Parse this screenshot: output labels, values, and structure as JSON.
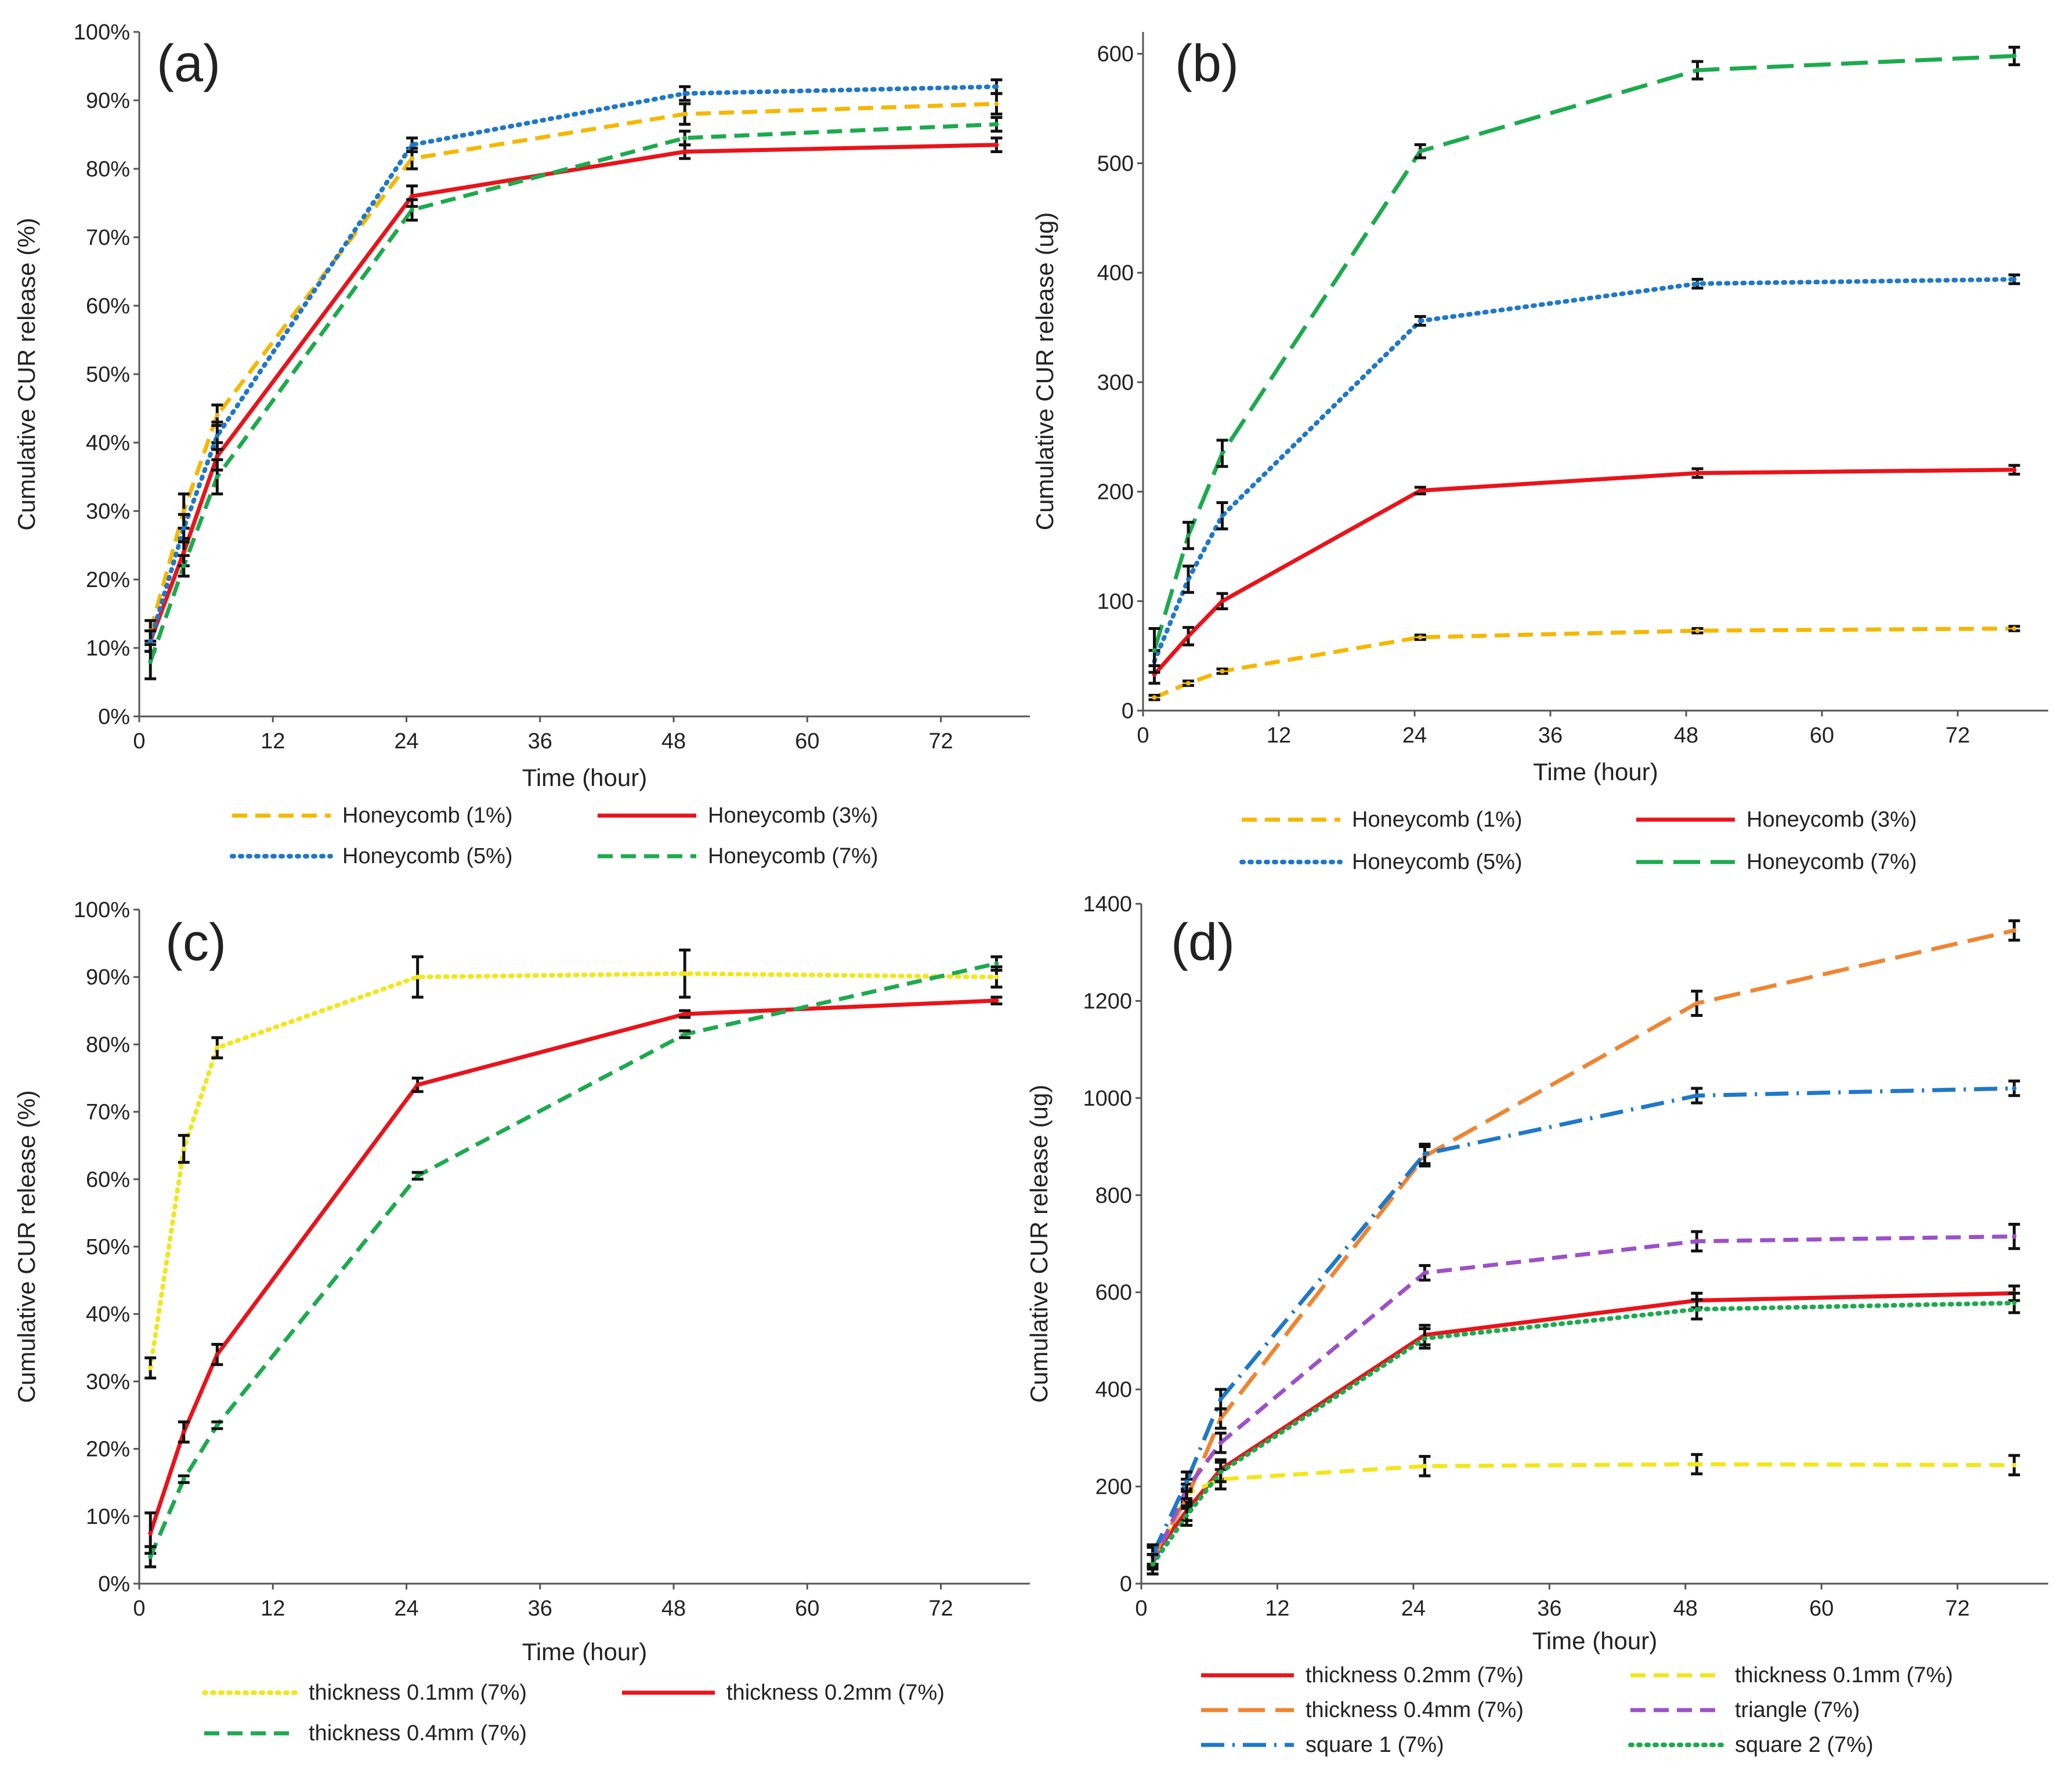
{
  "chart_data": [
    {
      "type": "line",
      "panel_label": "(a)",
      "xlabel": "Time (hour)",
      "ylabel": "Cumulative CUR release (%)",
      "xlim": [
        0,
        80
      ],
      "xticks": [
        0,
        12,
        24,
        36,
        48,
        60,
        72
      ],
      "ylim": [
        0,
        100
      ],
      "yticks": [
        0,
        10,
        20,
        30,
        40,
        50,
        60,
        70,
        80,
        90,
        100
      ],
      "ytick_labels": [
        "0%",
        "10%",
        "20%",
        "30%",
        "40%",
        "50%",
        "60%",
        "70%",
        "80%",
        "90%",
        "100%"
      ],
      "x": [
        1,
        4,
        7,
        24.5,
        49,
        77
      ],
      "series": [
        {
          "name": "Honeycomb (1%)",
          "color": "#F5B700",
          "style": "dash",
          "values": [
            12.5,
            30,
            44,
            81.5,
            88,
            89.5
          ],
          "errors": [
            1.5,
            2.5,
            1.5,
            1.5,
            1.5,
            1.5
          ]
        },
        {
          "name": "Honeycomb (3%)",
          "color": "#E8141B",
          "style": "solid",
          "values": [
            11,
            24,
            38,
            76,
            82.5,
            83.5
          ],
          "errors": [
            1.5,
            2,
            2,
            1.5,
            1,
            1
          ]
        },
        {
          "name": "Honeycomb (5%)",
          "color": "#1F78C8",
          "style": "dot",
          "values": [
            11,
            27.5,
            41,
            83.5,
            91,
            92
          ],
          "errors": [
            1.5,
            2,
            2,
            1,
            1,
            1
          ]
        },
        {
          "name": "Honeycomb (7%)",
          "color": "#1DAA4E",
          "style": "dash",
          "values": [
            8,
            22,
            35,
            74,
            84.5,
            86.5
          ],
          "errors": [
            2.5,
            1.5,
            2.5,
            1.5,
            1,
            1
          ]
        }
      ],
      "legend": [
        [
          "Honeycomb (1%)",
          "Honeycomb (3%)"
        ],
        [
          "Honeycomb (5%)",
          "Honeycomb (7%)"
        ]
      ]
    },
    {
      "type": "line",
      "panel_label": "(b)",
      "xlabel": "Time (hour)",
      "ylabel": "Cumulative CUR release (ug)",
      "xlim": [
        0,
        80
      ],
      "xticks": [
        0,
        12,
        24,
        36,
        48,
        60,
        72
      ],
      "ylim": [
        0,
        620
      ],
      "yticks": [
        0,
        100,
        200,
        300,
        400,
        500,
        600
      ],
      "ytick_labels": [
        "0",
        "100",
        "200",
        "300",
        "400",
        "500",
        "600"
      ],
      "x": [
        1,
        4,
        7,
        24.5,
        49,
        77
      ],
      "series": [
        {
          "name": "Honeycomb (1%)",
          "color": "#F5B700",
          "style": "dash",
          "values": [
            12,
            25,
            36,
            67,
            73,
            75
          ],
          "errors": [
            2,
            2,
            2,
            2,
            2,
            2
          ]
        },
        {
          "name": "Honeycomb (3%)",
          "color": "#E8141B",
          "style": "solid",
          "values": [
            33,
            68,
            100,
            201,
            217,
            220
          ],
          "errors": [
            8,
            8,
            7,
            3,
            4,
            4
          ]
        },
        {
          "name": "Honeycomb (5%)",
          "color": "#1F78C8",
          "style": "dot",
          "values": [
            45,
            120,
            178,
            356,
            390,
            394
          ],
          "errors": [
            10,
            12,
            12,
            4,
            4,
            4
          ]
        },
        {
          "name": "Honeycomb (7%)",
          "color": "#1DAA4E",
          "style": "longdash",
          "values": [
            55,
            160,
            235,
            511,
            585,
            598
          ],
          "errors": [
            20,
            12,
            12,
            6,
            8,
            8
          ]
        }
      ],
      "legend": [
        [
          "Honeycomb (1%)",
          "Honeycomb (3%)"
        ],
        [
          "Honeycomb (5%)",
          "Honeycomb (7%)"
        ]
      ]
    },
    {
      "type": "line",
      "panel_label": "(c)",
      "xlabel": "Time (hour)",
      "ylabel": "Cumulative CUR release (%)",
      "xlim": [
        0,
        80
      ],
      "xticks": [
        0,
        12,
        24,
        36,
        48,
        60,
        72
      ],
      "ylim": [
        0,
        100
      ],
      "yticks": [
        0,
        10,
        20,
        30,
        40,
        50,
        60,
        70,
        80,
        90,
        100
      ],
      "ytick_labels": [
        "0%",
        "10%",
        "20%",
        "30%",
        "40%",
        "50%",
        "60%",
        "70%",
        "80%",
        "90%",
        "100%"
      ],
      "x": [
        1,
        4,
        7,
        25,
        49,
        77
      ],
      "series": [
        {
          "name": "thickness 0.1mm (7%)",
          "color": "#F2E61C",
          "style": "dot",
          "values": [
            32,
            64.5,
            79.5,
            90,
            90.5,
            90
          ],
          "errors": [
            1.5,
            2,
            1.5,
            3,
            3.5,
            1.5
          ]
        },
        {
          "name": "thickness 0.2mm (7%)",
          "color": "#E8141B",
          "style": "solid",
          "values": [
            7.5,
            22.5,
            34,
            74,
            84.5,
            86.5
          ],
          "errors": [
            3,
            1.5,
            1.5,
            1,
            0.5,
            0.5
          ]
        },
        {
          "name": "thickness 0.4mm (7%)",
          "color": "#1DAA4E",
          "style": "dash",
          "values": [
            4,
            15.5,
            23.5,
            60.5,
            81.5,
            92
          ],
          "errors": [
            1.5,
            0.5,
            0.5,
            0.5,
            0.5,
            1
          ]
        }
      ],
      "legend": [
        [
          "thickness 0.1mm (7%)",
          "thickness 0.2mm (7%)"
        ],
        [
          "thickness 0.4mm (7%)"
        ]
      ]
    },
    {
      "type": "line",
      "panel_label": "(d)",
      "xlabel": "Time (hour)",
      "ylabel": "Cumulative CUR release (ug)",
      "xlim": [
        0,
        80
      ],
      "xticks": [
        0,
        12,
        24,
        36,
        48,
        60,
        72
      ],
      "ylim": [
        0,
        1400
      ],
      "yticks": [
        0,
        200,
        400,
        600,
        800,
        1000,
        1200,
        1400
      ],
      "ytick_labels": [
        "0",
        "200",
        "400",
        "600",
        "800",
        "1000",
        "1200",
        "1400"
      ],
      "x": [
        1,
        4,
        7,
        25,
        49,
        77
      ],
      "series": [
        {
          "name": "thickness 0.2mm (7%)",
          "color": "#E8141B",
          "style": "solid",
          "values": [
            55,
            150,
            235,
            512,
            583,
            598
          ],
          "errors": [
            20,
            20,
            20,
            20,
            15,
            15
          ]
        },
        {
          "name": "thickness 0.1mm (7%)",
          "color": "#F2E61C",
          "style": "dash",
          "values": [
            45,
            185,
            215,
            242,
            246,
            244
          ],
          "errors": [
            15,
            20,
            20,
            20,
            20,
            20
          ]
        },
        {
          "name": "thickness 0.4mm (7%)",
          "color": "#EE8532",
          "style": "longdash",
          "values": [
            55,
            175,
            340,
            880,
            1195,
            1345
          ],
          "errors": [
            20,
            20,
            20,
            20,
            25,
            20
          ]
        },
        {
          "name": "triangle (7%)",
          "color": "#9B51C8",
          "style": "dash",
          "values": [
            40,
            195,
            290,
            640,
            705,
            715
          ],
          "errors": [
            20,
            20,
            20,
            15,
            20,
            25
          ]
        },
        {
          "name": "square 1 (7%)",
          "color": "#1F78C8",
          "style": "dashdot",
          "values": [
            60,
            210,
            380,
            885,
            1005,
            1020
          ],
          "errors": [
            20,
            20,
            20,
            20,
            15,
            15
          ]
        },
        {
          "name": "square 2 (7%)",
          "color": "#1DAA4E",
          "style": "dot",
          "values": [
            40,
            140,
            230,
            505,
            565,
            578
          ],
          "errors": [
            20,
            20,
            20,
            20,
            20,
            20
          ]
        }
      ],
      "legend": [
        [
          "thickness 0.2mm (7%)",
          "thickness 0.1mm (7%)"
        ],
        [
          "thickness 0.4mm (7%)",
          "triangle (7%)"
        ],
        [
          "square 1 (7%)",
          "square 2 (7%)"
        ]
      ]
    }
  ]
}
